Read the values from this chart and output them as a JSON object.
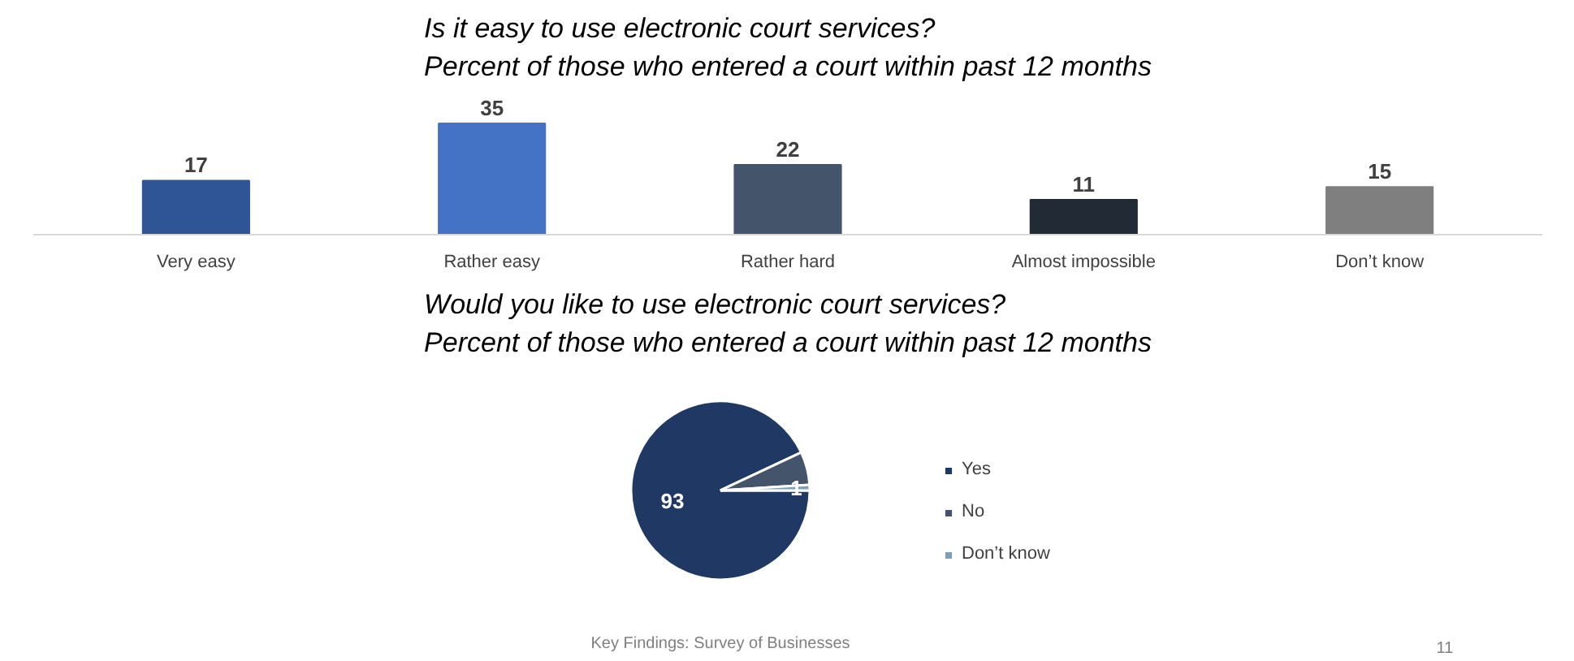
{
  "chart_data": [
    {
      "type": "bar",
      "title": "Is it easy to use electronic court services?\nPercent of those who entered a court within past 12 months",
      "categories": [
        "Very easy",
        "Rather easy",
        "Rather hard",
        "Almost impossible",
        "Don’t know"
      ],
      "values": [
        17,
        35,
        22,
        11,
        15
      ],
      "colors": [
        "#2f5597",
        "#4472c4",
        "#44546a",
        "#222a35",
        "#7f7f7f"
      ],
      "data_labels": true,
      "grid": false
    },
    {
      "type": "pie",
      "title": "Would you like to use electronic court services?\nPercent of those who entered a court within past 12 months",
      "categories": [
        "Yes",
        "No",
        "Don’t know"
      ],
      "values": [
        93,
        6,
        1
      ],
      "value_labels": [
        "93",
        null,
        "1"
      ],
      "colors": [
        "#203864",
        "#44546a",
        "#7f9fb5"
      ],
      "legend": "right",
      "annotations": [
        "Key Findings: Survey of Businesses",
        "11"
      ]
    }
  ]
}
